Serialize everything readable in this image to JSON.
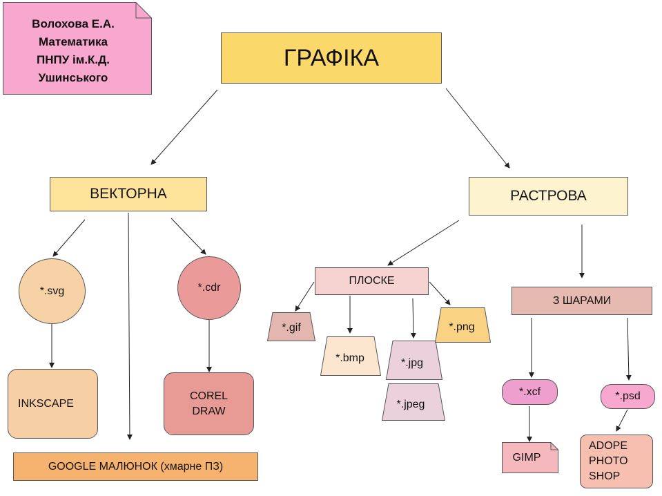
{
  "author_note": {
    "line1": "Волохова Е.А.",
    "line2": "Математика",
    "line3": "ПНПУ ім.К.Д.",
    "line4": "Ушинського",
    "color": "#f8a8cf"
  },
  "root": {
    "label": "ГРАФІКА",
    "color": "#fbd86a"
  },
  "vector": {
    "label": "ВЕКТОРНА",
    "color": "#fde49a",
    "svg": {
      "label": "*.svg",
      "color": "#f7d2a6"
    },
    "cdr": {
      "label": "*.cdr",
      "color": "#eb9a9a"
    },
    "inkscape": {
      "label": "INKSCAPE",
      "color": "#f7cfa4"
    },
    "corel": {
      "line1": "COREL",
      "line2": "DRAW",
      "color": "#e89a95"
    },
    "google": {
      "label": "GOOGLE МАЛЮНОК (хмарне ПЗ)",
      "color": "#f6b36f"
    }
  },
  "raster": {
    "label": "РАСТРОВА",
    "color": "#fef3cf",
    "flat": {
      "label": "ПЛОСКЕ",
      "color": "#f6d3d1",
      "gif": {
        "label": "*.gif",
        "color": "#e3b6af"
      },
      "bmp": {
        "label": "*.bmp",
        "color": "#fde6cf"
      },
      "jpg": {
        "label": "*.jpg",
        "color": "#ead1dc"
      },
      "jpeg": {
        "label": "*.jpeg",
        "color": "#ead1dc"
      },
      "png": {
        "label": "*.png",
        "color": "#f9d283"
      }
    },
    "layered": {
      "label": "З ШАРАМИ",
      "color": "#e6b9b1",
      "xcf": {
        "label": "*.xcf",
        "color": "#ee9fcd"
      },
      "psd": {
        "label": "*.psd",
        "color": "#f8a8cf"
      },
      "gimp": {
        "label": "GIMP",
        "color": "#f4b8bd"
      },
      "photoshop": {
        "line1": "ADOPE",
        "line2": "PHOTO",
        "line3": "SHOP",
        "color": "#f7bfb0"
      }
    }
  }
}
